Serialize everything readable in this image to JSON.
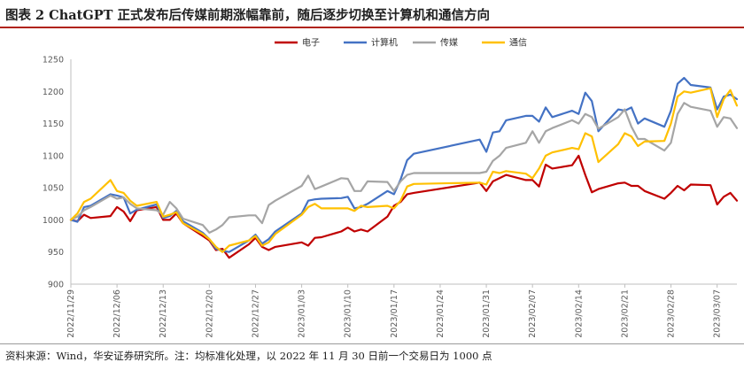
{
  "header": {
    "title": "图表 2 ChatGPT 正式发布后传媒前期涨幅靠前，随后逐步切换至计算机和通信方向"
  },
  "footer": {
    "source": "资料来源：Wind，华安证券研究所。注：均标准化处理，以 2022 年 11 月 30 日前一个交易日为 1000 点"
  },
  "chart_data": {
    "type": "line",
    "title": "图表 2 ChatGPT 正式发布后传媒前期涨幅靠前，随后逐步切换至计算机和通信方向",
    "xlabel": "",
    "ylabel": "",
    "ylim": [
      900,
      1250
    ],
    "yticks": [
      900,
      950,
      1000,
      1050,
      1100,
      1150,
      1200,
      1250
    ],
    "legend_position": "top-center",
    "grid": false,
    "x_start": "2022-11-29",
    "x_end": "2023-03-10",
    "x_ticks": [
      "2022/11/29",
      "2022/12/06",
      "2022/12/13",
      "2022/12/20",
      "2022/12/27",
      "2023/01/03",
      "2023/01/10",
      "2023/01/17",
      "2023/01/24",
      "2023/01/31",
      "2023/02/07",
      "2023/02/14",
      "2023/02/21",
      "2023/02/28",
      "2023/03/07"
    ],
    "series": [
      {
        "name": "电子",
        "color": "#c00000",
        "points": [
          [
            "2022-11-29",
            1000
          ],
          [
            "2022-11-30",
            998
          ],
          [
            "2022-12-01",
            1008
          ],
          [
            "2022-12-02",
            1003
          ],
          [
            "2022-12-05",
            1006
          ],
          [
            "2022-12-06",
            1020
          ],
          [
            "2022-12-07",
            1013
          ],
          [
            "2022-12-08",
            998
          ],
          [
            "2022-12-09",
            1015
          ],
          [
            "2022-12-12",
            1020
          ],
          [
            "2022-12-13",
            1000
          ],
          [
            "2022-12-14",
            1000
          ],
          [
            "2022-12-15",
            1010
          ],
          [
            "2022-12-16",
            995
          ],
          [
            "2022-12-19",
            975
          ],
          [
            "2022-12-20",
            968
          ],
          [
            "2022-12-21",
            953
          ],
          [
            "2022-12-22",
            955
          ],
          [
            "2022-12-23",
            941
          ],
          [
            "2022-12-26",
            962
          ],
          [
            "2022-12-27",
            972
          ],
          [
            "2022-12-28",
            958
          ],
          [
            "2022-12-29",
            953
          ],
          [
            "2022-12-30",
            958
          ],
          [
            "2023-01-03",
            965
          ],
          [
            "2023-01-04",
            960
          ],
          [
            "2023-01-05",
            972
          ],
          [
            "2023-01-06",
            973
          ],
          [
            "2023-01-09",
            982
          ],
          [
            "2023-01-10",
            988
          ],
          [
            "2023-01-11",
            982
          ],
          [
            "2023-01-12",
            985
          ],
          [
            "2023-01-13",
            982
          ],
          [
            "2023-01-16",
            1005
          ],
          [
            "2023-01-17",
            1022
          ],
          [
            "2023-01-18",
            1028
          ],
          [
            "2023-01-19",
            1040
          ],
          [
            "2023-01-20",
            1042
          ],
          [
            "2023-01-30",
            1058
          ],
          [
            "2023-01-31",
            1045
          ],
          [
            "2023-02-01",
            1060
          ],
          [
            "2023-02-02",
            1065
          ],
          [
            "2023-02-03",
            1070
          ],
          [
            "2023-02-06",
            1062
          ],
          [
            "2023-02-07",
            1062
          ],
          [
            "2023-02-08",
            1052
          ],
          [
            "2023-02-09",
            1086
          ],
          [
            "2023-02-10",
            1080
          ],
          [
            "2023-02-13",
            1085
          ],
          [
            "2023-02-14",
            1100
          ],
          [
            "2023-02-15",
            1070
          ],
          [
            "2023-02-16",
            1043
          ],
          [
            "2023-02-17",
            1048
          ],
          [
            "2023-02-20",
            1057
          ],
          [
            "2023-02-21",
            1058
          ],
          [
            "2023-02-22",
            1053
          ],
          [
            "2023-02-23",
            1053
          ],
          [
            "2023-02-24",
            1045
          ],
          [
            "2023-02-27",
            1033
          ],
          [
            "2023-02-28",
            1042
          ],
          [
            "2023-03-01",
            1053
          ],
          [
            "2023-03-02",
            1046
          ],
          [
            "2023-03-03",
            1055
          ],
          [
            "2023-03-06",
            1054
          ],
          [
            "2023-03-07",
            1024
          ],
          [
            "2023-03-08",
            1036
          ],
          [
            "2023-03-09",
            1042
          ],
          [
            "2023-03-10",
            1030
          ]
        ]
      },
      {
        "name": "计算机",
        "color": "#4472c4",
        "points": [
          [
            "2022-11-29",
            1000
          ],
          [
            "2022-11-30",
            997
          ],
          [
            "2022-12-01",
            1020
          ],
          [
            "2022-12-02",
            1022
          ],
          [
            "2022-12-05",
            1040
          ],
          [
            "2022-12-06",
            1038
          ],
          [
            "2022-12-07",
            1035
          ],
          [
            "2022-12-08",
            1010
          ],
          [
            "2022-12-09",
            1016
          ],
          [
            "2022-12-12",
            1024
          ],
          [
            "2022-12-13",
            1003
          ],
          [
            "2022-12-14",
            1006
          ],
          [
            "2022-12-15",
            1014
          ],
          [
            "2022-12-16",
            998
          ],
          [
            "2022-12-19",
            980
          ],
          [
            "2022-12-20",
            970
          ],
          [
            "2022-12-21",
            955
          ],
          [
            "2022-12-22",
            952
          ],
          [
            "2022-12-23",
            950
          ],
          [
            "2022-12-26",
            968
          ],
          [
            "2022-12-27",
            977
          ],
          [
            "2022-12-28",
            963
          ],
          [
            "2022-12-29",
            970
          ],
          [
            "2022-12-30",
            982
          ],
          [
            "2023-01-03",
            1010
          ],
          [
            "2023-01-04",
            1030
          ],
          [
            "2023-01-05",
            1032
          ],
          [
            "2023-01-06",
            1033
          ],
          [
            "2023-01-09",
            1034
          ],
          [
            "2023-01-10",
            1036
          ],
          [
            "2023-01-11",
            1018
          ],
          [
            "2023-01-12",
            1020
          ],
          [
            "2023-01-13",
            1025
          ],
          [
            "2023-01-16",
            1045
          ],
          [
            "2023-01-17",
            1040
          ],
          [
            "2023-01-18",
            1063
          ],
          [
            "2023-01-19",
            1093
          ],
          [
            "2023-01-20",
            1103
          ],
          [
            "2023-01-30",
            1125
          ],
          [
            "2023-01-31",
            1106
          ],
          [
            "2023-02-01",
            1136
          ],
          [
            "2023-02-02",
            1138
          ],
          [
            "2023-02-03",
            1155
          ],
          [
            "2023-02-06",
            1162
          ],
          [
            "2023-02-07",
            1162
          ],
          [
            "2023-02-08",
            1153
          ],
          [
            "2023-02-09",
            1175
          ],
          [
            "2023-02-10",
            1160
          ],
          [
            "2023-02-13",
            1170
          ],
          [
            "2023-02-14",
            1165
          ],
          [
            "2023-02-15",
            1198
          ],
          [
            "2023-02-16",
            1185
          ],
          [
            "2023-02-17",
            1138
          ],
          [
            "2023-02-20",
            1172
          ],
          [
            "2023-02-21",
            1170
          ],
          [
            "2023-02-22",
            1175
          ],
          [
            "2023-02-23",
            1150
          ],
          [
            "2023-02-24",
            1158
          ],
          [
            "2023-02-27",
            1145
          ],
          [
            "2023-02-28",
            1170
          ],
          [
            "2023-03-01",
            1212
          ],
          [
            "2023-03-02",
            1221
          ],
          [
            "2023-03-03",
            1210
          ],
          [
            "2023-03-06",
            1206
          ],
          [
            "2023-03-07",
            1172
          ],
          [
            "2023-03-08",
            1192
          ],
          [
            "2023-03-09",
            1195
          ],
          [
            "2023-03-10",
            1188
          ]
        ]
      },
      {
        "name": "传媒",
        "color": "#a5a5a5",
        "points": [
          [
            "2022-11-29",
            1000
          ],
          [
            "2022-11-30",
            1005
          ],
          [
            "2022-12-01",
            1015
          ],
          [
            "2022-12-02",
            1020
          ],
          [
            "2022-12-05",
            1038
          ],
          [
            "2022-12-06",
            1033
          ],
          [
            "2022-12-07",
            1035
          ],
          [
            "2022-12-08",
            1025
          ],
          [
            "2022-12-09",
            1018
          ],
          [
            "2022-12-12",
            1015
          ],
          [
            "2022-12-13",
            1008
          ],
          [
            "2022-12-14",
            1028
          ],
          [
            "2022-12-15",
            1018
          ],
          [
            "2022-12-16",
            1002
          ],
          [
            "2022-12-19",
            992
          ],
          [
            "2022-12-20",
            980
          ],
          [
            "2022-12-21",
            985
          ],
          [
            "2022-12-22",
            992
          ],
          [
            "2022-12-23",
            1004
          ],
          [
            "2022-12-26",
            1007
          ],
          [
            "2022-12-27",
            1007
          ],
          [
            "2022-12-28",
            995
          ],
          [
            "2022-12-29",
            1023
          ],
          [
            "2022-12-30",
            1030
          ],
          [
            "2023-01-03",
            1053
          ],
          [
            "2023-01-04",
            1069
          ],
          [
            "2023-01-05",
            1048
          ],
          [
            "2023-01-06",
            1052
          ],
          [
            "2023-01-09",
            1065
          ],
          [
            "2023-01-10",
            1064
          ],
          [
            "2023-01-11",
            1045
          ],
          [
            "2023-01-12",
            1045
          ],
          [
            "2023-01-13",
            1060
          ],
          [
            "2023-01-16",
            1059
          ],
          [
            "2023-01-17",
            1045
          ],
          [
            "2023-01-18",
            1060
          ],
          [
            "2023-01-19",
            1070
          ],
          [
            "2023-01-20",
            1073
          ],
          [
            "2023-01-30",
            1073
          ],
          [
            "2023-01-31",
            1075
          ],
          [
            "2023-02-01",
            1092
          ],
          [
            "2023-02-02",
            1100
          ],
          [
            "2023-02-03",
            1112
          ],
          [
            "2023-02-06",
            1120
          ],
          [
            "2023-02-07",
            1138
          ],
          [
            "2023-02-08",
            1120
          ],
          [
            "2023-02-09",
            1138
          ],
          [
            "2023-02-10",
            1143
          ],
          [
            "2023-02-13",
            1155
          ],
          [
            "2023-02-14",
            1150
          ],
          [
            "2023-02-15",
            1165
          ],
          [
            "2023-02-16",
            1160
          ],
          [
            "2023-02-17",
            1142
          ],
          [
            "2023-02-20",
            1160
          ],
          [
            "2023-02-21",
            1172
          ],
          [
            "2023-02-22",
            1145
          ],
          [
            "2023-02-23",
            1126
          ],
          [
            "2023-02-24",
            1126
          ],
          [
            "2023-02-27",
            1108
          ],
          [
            "2023-02-28",
            1120
          ],
          [
            "2023-03-01",
            1165
          ],
          [
            "2023-03-02",
            1182
          ],
          [
            "2023-03-03",
            1176
          ],
          [
            "2023-03-06",
            1170
          ],
          [
            "2023-03-07",
            1145
          ],
          [
            "2023-03-08",
            1160
          ],
          [
            "2023-03-09",
            1158
          ],
          [
            "2023-03-10",
            1143
          ]
        ]
      },
      {
        "name": "通信",
        "color": "#ffc000",
        "points": [
          [
            "2022-11-29",
            1000
          ],
          [
            "2022-11-30",
            1010
          ],
          [
            "2022-12-01",
            1028
          ],
          [
            "2022-12-02",
            1033
          ],
          [
            "2022-12-05",
            1062
          ],
          [
            "2022-12-06",
            1045
          ],
          [
            "2022-12-07",
            1042
          ],
          [
            "2022-12-08",
            1030
          ],
          [
            "2022-12-09",
            1022
          ],
          [
            "2022-12-12",
            1028
          ],
          [
            "2022-12-13",
            1005
          ],
          [
            "2022-12-14",
            1008
          ],
          [
            "2022-12-15",
            1012
          ],
          [
            "2022-12-16",
            995
          ],
          [
            "2022-12-19",
            978
          ],
          [
            "2022-12-20",
            970
          ],
          [
            "2022-12-21",
            958
          ],
          [
            "2022-12-22",
            950
          ],
          [
            "2022-12-23",
            960
          ],
          [
            "2022-12-26",
            968
          ],
          [
            "2022-12-27",
            975
          ],
          [
            "2022-12-28",
            960
          ],
          [
            "2022-12-29",
            965
          ],
          [
            "2022-12-30",
            978
          ],
          [
            "2023-01-03",
            1008
          ],
          [
            "2023-01-04",
            1020
          ],
          [
            "2023-01-05",
            1025
          ],
          [
            "2023-01-06",
            1018
          ],
          [
            "2023-01-09",
            1018
          ],
          [
            "2023-01-10",
            1018
          ],
          [
            "2023-01-11",
            1014
          ],
          [
            "2023-01-12",
            1022
          ],
          [
            "2023-01-13",
            1020
          ],
          [
            "2023-01-16",
            1022
          ],
          [
            "2023-01-17",
            1018
          ],
          [
            "2023-01-18",
            1030
          ],
          [
            "2023-01-19",
            1052
          ],
          [
            "2023-01-20",
            1056
          ],
          [
            "2023-01-30",
            1058
          ],
          [
            "2023-01-31",
            1055
          ],
          [
            "2023-02-01",
            1075
          ],
          [
            "2023-02-02",
            1073
          ],
          [
            "2023-02-03",
            1076
          ],
          [
            "2023-02-06",
            1072
          ],
          [
            "2023-02-07",
            1065
          ],
          [
            "2023-02-08",
            1080
          ],
          [
            "2023-02-09",
            1100
          ],
          [
            "2023-02-10",
            1105
          ],
          [
            "2023-02-13",
            1112
          ],
          [
            "2023-02-14",
            1110
          ],
          [
            "2023-02-15",
            1135
          ],
          [
            "2023-02-16",
            1130
          ],
          [
            "2023-02-17",
            1090
          ],
          [
            "2023-02-20",
            1118
          ],
          [
            "2023-02-21",
            1135
          ],
          [
            "2023-02-22",
            1130
          ],
          [
            "2023-02-23",
            1115
          ],
          [
            "2023-02-24",
            1122
          ],
          [
            "2023-02-27",
            1123
          ],
          [
            "2023-02-28",
            1150
          ],
          [
            "2023-03-01",
            1192
          ],
          [
            "2023-03-02",
            1200
          ],
          [
            "2023-03-03",
            1198
          ],
          [
            "2023-03-06",
            1205
          ],
          [
            "2023-03-07",
            1160
          ],
          [
            "2023-03-08",
            1188
          ],
          [
            "2023-03-09",
            1202
          ],
          [
            "2023-03-10",
            1178
          ]
        ]
      }
    ]
  }
}
